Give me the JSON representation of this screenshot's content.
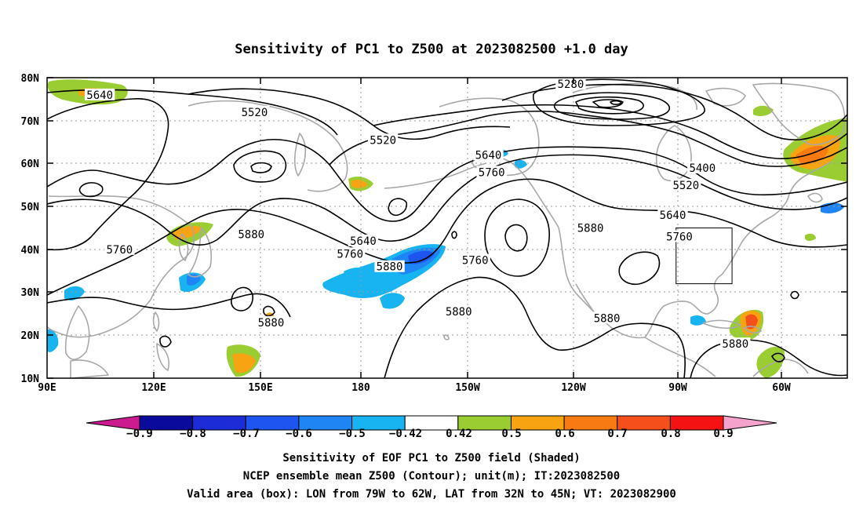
{
  "title": "Sensitivity of PC1 to Z500 at 2023082500 +1.0 day",
  "lat_ticks": [
    "80N",
    "70N",
    "60N",
    "50N",
    "40N",
    "30N",
    "20N",
    "10N"
  ],
  "lon_ticks": [
    "90E",
    "120E",
    "150E",
    "180",
    "150W",
    "120W",
    "90W",
    "60W"
  ],
  "contour_labels": [
    {
      "text": "5640",
      "lon": 106,
      "lat": 76
    },
    {
      "text": "5520",
      "lon": 153,
      "lat": 72
    },
    {
      "text": "5280",
      "lon": 249,
      "lat": 78.5
    },
    {
      "text": "5520",
      "lon": 192,
      "lat": 65.5
    },
    {
      "text": "5640",
      "lon": 224,
      "lat": 62
    },
    {
      "text": "5760",
      "lon": 225,
      "lat": 58
    },
    {
      "text": "5400",
      "lon": 289,
      "lat": 59
    },
    {
      "text": "5520",
      "lon": 284,
      "lat": 55
    },
    {
      "text": "5640",
      "lon": 280,
      "lat": 48
    },
    {
      "text": "5760",
      "lon": 282,
      "lat": 43
    },
    {
      "text": "5880",
      "lon": 152,
      "lat": 43.5
    },
    {
      "text": "5640",
      "lon": 186,
      "lat": 42
    },
    {
      "text": "5760",
      "lon": 112,
      "lat": 40
    },
    {
      "text": "5760",
      "lon": 182,
      "lat": 39
    },
    {
      "text": "5880",
      "lon": 194,
      "lat": 36
    },
    {
      "text": "5760",
      "lon": 220,
      "lat": 37.5
    },
    {
      "text": "5880",
      "lon": 255,
      "lat": 45
    },
    {
      "text": "5880",
      "lon": 158,
      "lat": 23
    },
    {
      "text": "5880",
      "lon": 215,
      "lat": 25.5
    },
    {
      "text": "5880",
      "lon": 260,
      "lat": 24
    },
    {
      "text": "5880",
      "lon": 299,
      "lat": 18
    }
  ],
  "colorbar": {
    "labels": [
      "−0.9",
      "−0.8",
      "−0.7",
      "−0.6",
      "−0.5",
      "−0.42",
      "0.42",
      "0.5",
      "0.6",
      "0.7",
      "0.8",
      "0.9"
    ],
    "colors": [
      "#0a0a9c",
      "#1c2cd6",
      "#1e55f0",
      "#1f85f5",
      "#18b4f2",
      "#ffffff",
      "#9acd32",
      "#f8a412",
      "#f77b12",
      "#f5501c",
      "#f41212"
    ],
    "low_color": "#cc1a8f",
    "high_color": "#f5a3cc"
  },
  "footer": {
    "line1": "Sensitivity of EOF PC1 to Z500 field (Shaded)",
    "line2": "NCEP ensemble mean Z500 (Contour); unit(m); IT:2023082500",
    "line3": "Valid area (box): LON from 79W to 62W, LAT from 32N to 45N; VT: 2023082900"
  },
  "valid_box": {
    "lon_from": 281,
    "lon_to": 298,
    "lat_from": 32,
    "lat_to": 45
  },
  "colors": {
    "contour": "#000000",
    "coast": "#a8a8a8",
    "grid": "#9a9a9a",
    "box": "#000000"
  }
}
